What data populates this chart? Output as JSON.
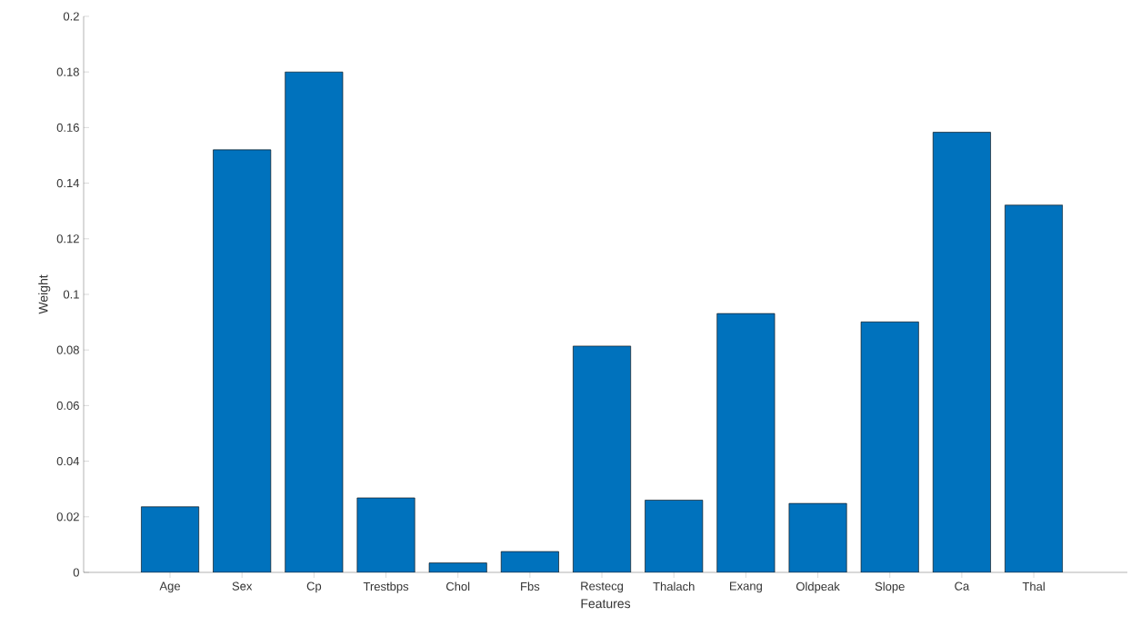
{
  "chart_data": {
    "type": "bar",
    "xlabel": "Features",
    "ylabel": "Weight",
    "categories": [
      "Age",
      "Sex",
      "Cp",
      "Trestbps",
      "Chol",
      "Fbs",
      "Restecg",
      "Thalach",
      "Exang",
      "Oldpeak",
      "Slope",
      "Ca",
      "Thal"
    ],
    "values": [
      0.0236,
      0.152,
      0.18,
      0.0268,
      0.0034,
      0.0075,
      0.0814,
      0.026,
      0.0931,
      0.0248,
      0.0901,
      0.1583,
      0.1321
    ],
    "color": "#0072bd",
    "ylim": [
      0,
      0.2
    ],
    "yticks": [
      0,
      0.02,
      0.04,
      0.06,
      0.08,
      0.1,
      0.12,
      0.14,
      0.16,
      0.18,
      0.2
    ],
    "grid": false
  }
}
